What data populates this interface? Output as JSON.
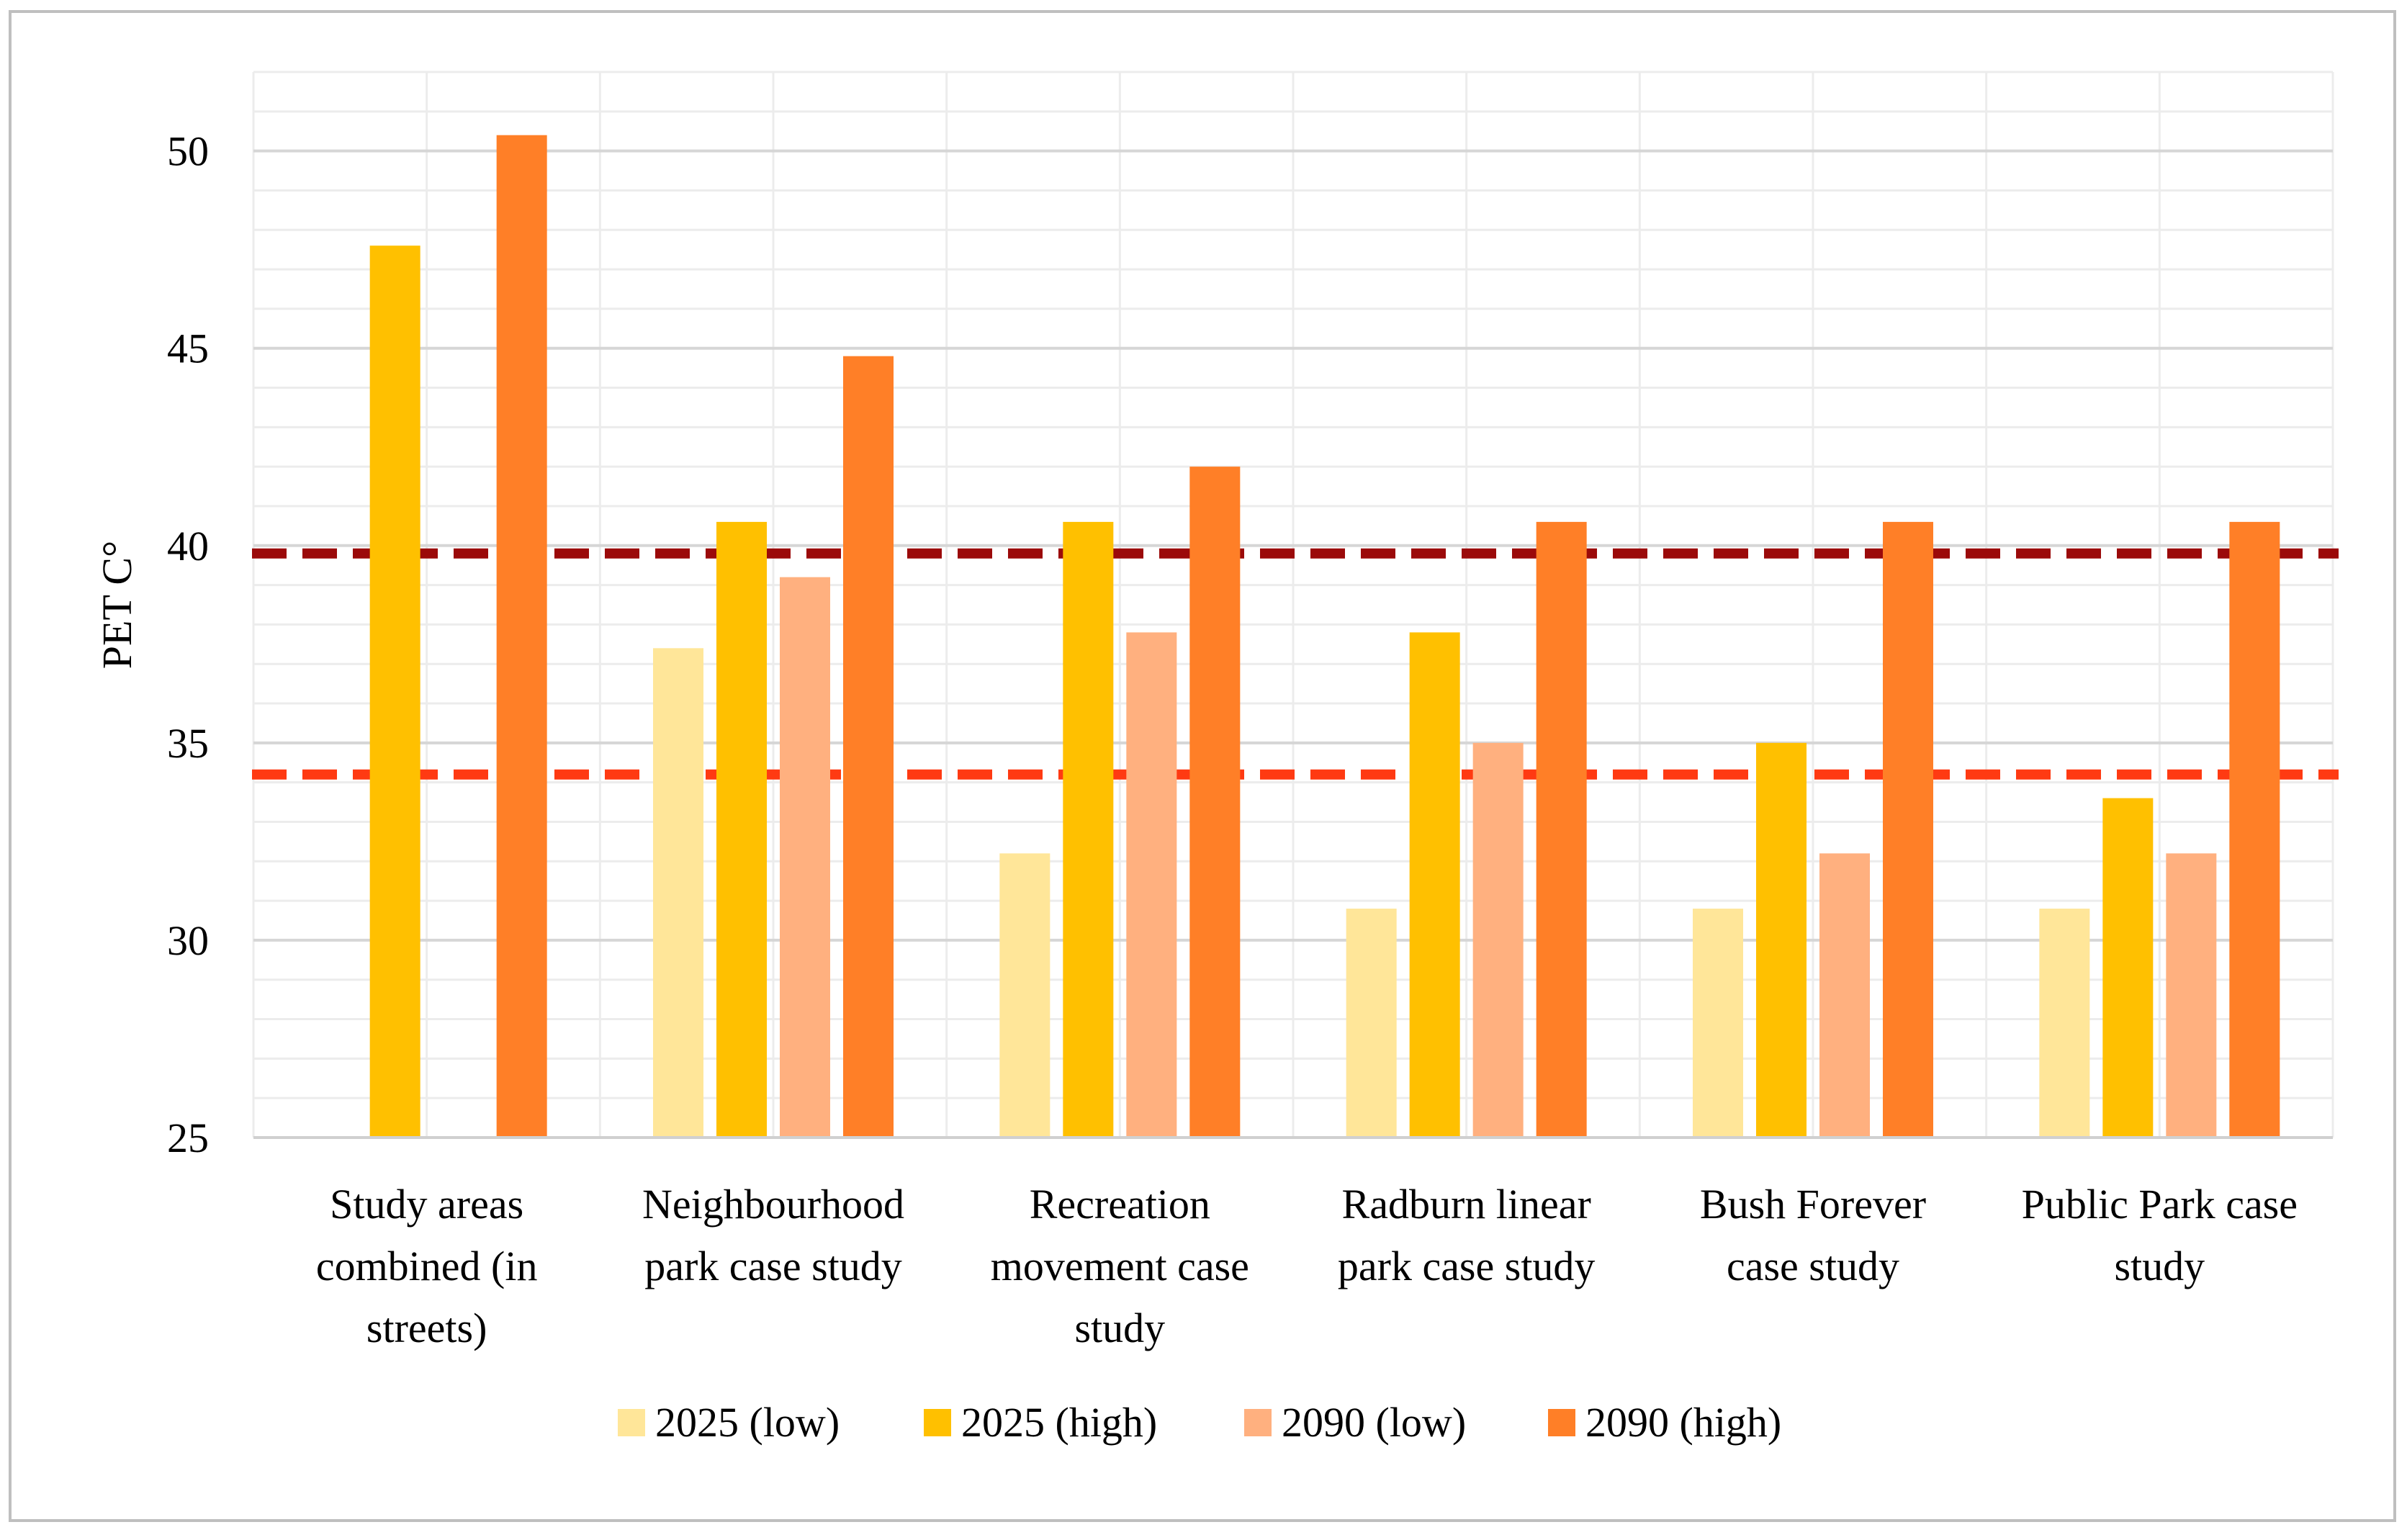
{
  "chart_data": {
    "type": "bar",
    "title": "",
    "xlabel": "",
    "ylabel": "PET C°",
    "ylim": [
      25,
      52
    ],
    "yticks": [
      25,
      30,
      35,
      40,
      45,
      50
    ],
    "minor_grid_step": 1,
    "categories": [
      [
        "Study areas",
        "combined (in",
        "streets)"
      ],
      [
        "Neighbourhood",
        "park case study"
      ],
      [
        "Recreation",
        "movement case",
        "study"
      ],
      [
        "Radburn linear",
        "park case study"
      ],
      [
        "Bush Forever",
        "case study"
      ],
      [
        "Public Park case",
        "study"
      ]
    ],
    "series": [
      {
        "name": "2025 (low)",
        "color": "#FFE699",
        "values": [
          null,
          37.4,
          32.2,
          30.8,
          30.8,
          30.8
        ]
      },
      {
        "name": "2025 (high)",
        "color": "#FFC000",
        "values": [
          47.6,
          40.6,
          40.6,
          37.8,
          35.0,
          33.6
        ]
      },
      {
        "name": "2090 (low)",
        "color": "#FFB07F",
        "values": [
          null,
          39.2,
          37.8,
          35.0,
          32.2,
          32.2
        ]
      },
      {
        "name": "2090 (high)",
        "color": "#FF7F27",
        "values": [
          50.4,
          44.8,
          42.0,
          40.6,
          40.6,
          40.6
        ]
      }
    ],
    "reference_lines": [
      {
        "value": 39.8,
        "color": "#9B0A0A",
        "style": "dashed"
      },
      {
        "value": 34.2,
        "color": "#FF3A12",
        "style": "dashed"
      }
    ],
    "legend_position": "bottom"
  }
}
